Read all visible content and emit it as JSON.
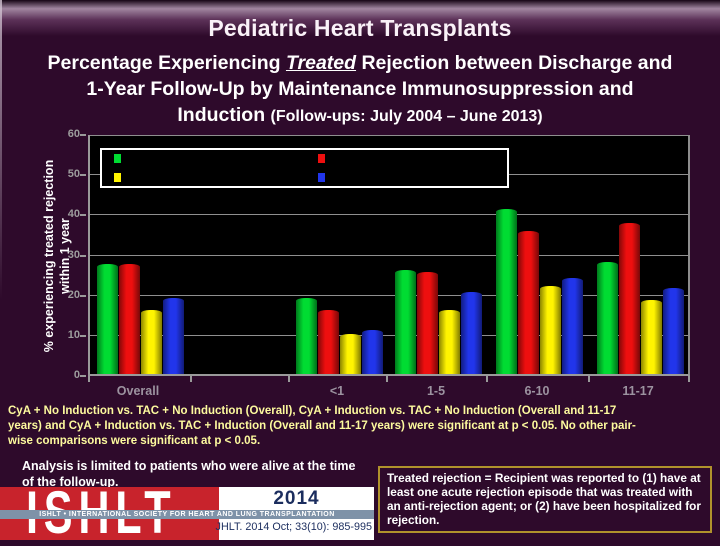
{
  "slide": {
    "title": "Pediatric Heart Transplants",
    "subtitle": {
      "line1": {
        "pre": "Percentage Experiencing ",
        "emphasis": "Treated",
        "post": " Rejection between Discharge and"
      },
      "line2": "1-Year Follow-Up by Maintenance Immunosuppression and",
      "line3": {
        "main": "Induction ",
        "detail": "(Follow-ups: July 2004 – June 2013)"
      }
    }
  },
  "chart_data": {
    "type": "bar",
    "title": "",
    "ylabel_line1": "%  experiencing treated rejection",
    "ylabel_line2": "within 1 year",
    "ylim": [
      0,
      60
    ],
    "yticks": [
      0,
      10,
      20,
      30,
      40,
      50,
      60
    ],
    "grid": true,
    "plot_background": "#000000",
    "categories": [
      "Overall",
      "<1",
      "1-5",
      "6-10",
      "11-17"
    ],
    "series": [
      {
        "name": "series-green",
        "color": "#00DC32",
        "values": [
          27.5,
          19,
          26,
          41,
          28
        ]
      },
      {
        "name": "series-red",
        "color": "#EE0F0F",
        "values": [
          27.5,
          16,
          25.5,
          35.5,
          37.5
        ]
      },
      {
        "name": "series-yellow",
        "color": "#FFF400",
        "values": [
          16,
          10,
          16,
          22,
          18.5
        ]
      },
      {
        "name": "series-blue",
        "color": "#2135EB",
        "values": [
          19,
          11,
          20.5,
          24,
          21.5
        ]
      }
    ],
    "legend": {
      "position": "top-left-inside",
      "rows": 2,
      "columns": 2,
      "labels_visible": false,
      "swatch_order": [
        "series-green",
        "series-red",
        "series-yellow",
        "series-blue"
      ]
    }
  },
  "footnote": {
    "lines": [
      "CyA + No Induction vs. TAC + No Induction (Overall), CyA + Induction vs. TAC + No Induction (Overall and 11-17",
      "years) and CyA + Induction vs. TAC + Induction (Overall and 11-17 years) were significant at p < 0.05. No other pair-",
      "wise comparisons were significant at p < 0.05."
    ]
  },
  "analysis_note": {
    "lines": [
      "Analysis is limited to patients who were alive at the time",
      "of the follow-up."
    ]
  },
  "definition_box": {
    "text": "Treated rejection = Recipient was reported to (1) have at least one acute rejection episode that was treated with an anti-rejection agent; or (2) have been hospitalized for rejection."
  },
  "logo": {
    "wordmark": "ISHLT",
    "banner": "ISHLT • INTERNATIONAL SOCIETY FOR HEART AND LUNG TRANSPLANTATION",
    "year": "2014",
    "citation": "JHLT. 2014 Oct; 33(10): 985-995"
  },
  "colors": {
    "slide_background": "#2E0A2B",
    "title_text": "#FAF2F8",
    "footnote_text": "#FDFA9E",
    "definition_border": "#B0922C",
    "logo_red": "#C8232C",
    "logo_stripe": "#7E92A8",
    "logo_navy": "#1B2D5E",
    "gridline": "#8F8F8F",
    "tick_label": "#9D9D9D"
  }
}
